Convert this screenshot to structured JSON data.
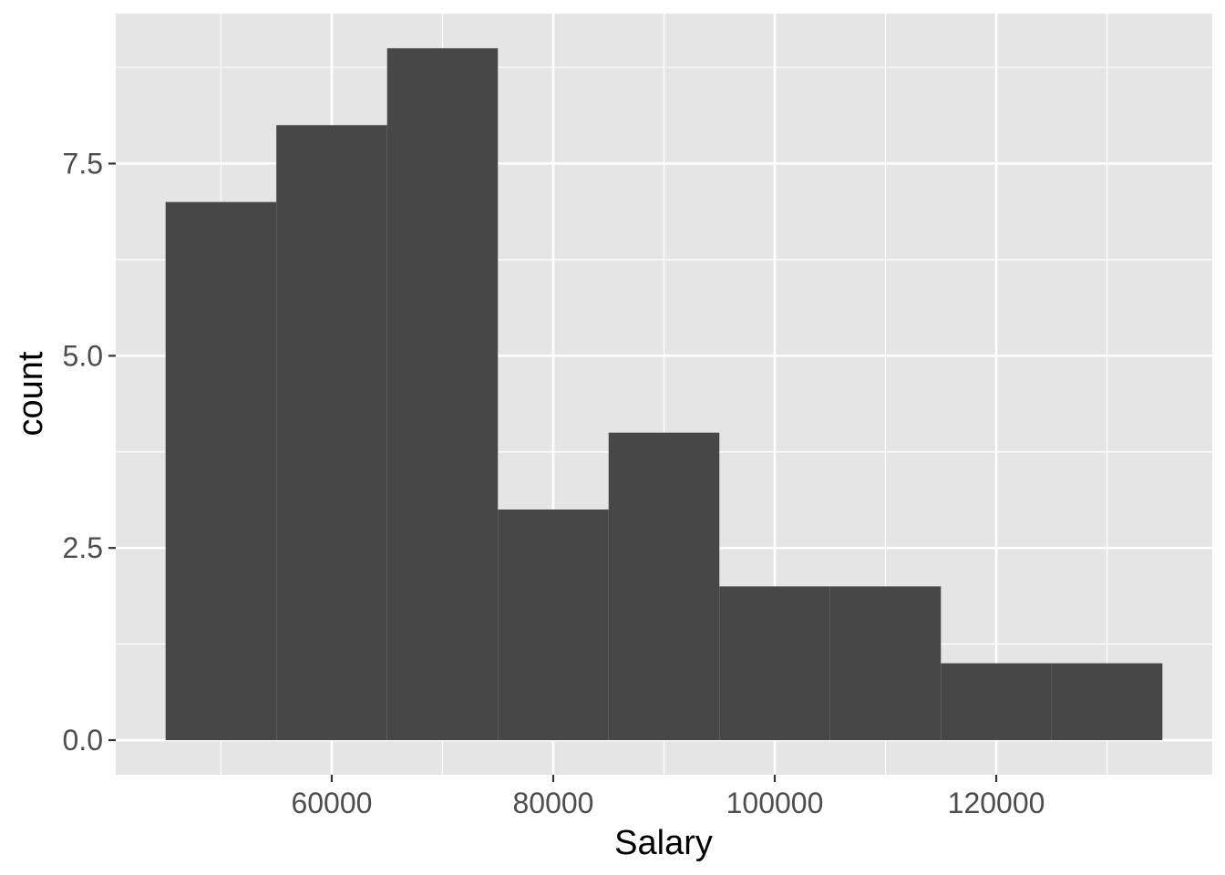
{
  "chart_data": {
    "type": "bar",
    "histogram": true,
    "bins": [
      {
        "x0": 45000,
        "x1": 55000,
        "count": 7
      },
      {
        "x0": 55000,
        "x1": 65000,
        "count": 8
      },
      {
        "x0": 65000,
        "x1": 75000,
        "count": 9
      },
      {
        "x0": 75000,
        "x1": 85000,
        "count": 3
      },
      {
        "x0": 85000,
        "x1": 95000,
        "count": 4
      },
      {
        "x0": 95000,
        "x1": 105000,
        "count": 2
      },
      {
        "x0": 105000,
        "x1": 115000,
        "count": 2
      },
      {
        "x0": 115000,
        "x1": 125000,
        "count": 1
      },
      {
        "x0": 125000,
        "x1": 135000,
        "count": 1
      }
    ],
    "title": "",
    "xlabel": "Salary",
    "ylabel": "count",
    "xlim": [
      40500,
      139500
    ],
    "ylim": [
      -0.45,
      9.45
    ],
    "x_ticks": [
      60000,
      80000,
      100000,
      120000
    ],
    "x_tick_labels": [
      "60000",
      "80000",
      "100000",
      "120000"
    ],
    "x_minor_ticks": [
      50000,
      70000,
      90000,
      110000,
      130000
    ],
    "y_ticks": [
      0,
      2.5,
      5,
      7.5
    ],
    "y_tick_labels": [
      "0.0",
      "2.5",
      "5.0",
      "7.5"
    ],
    "y_minor_ticks": [
      1.25,
      3.75,
      6.25,
      8.75
    ],
    "grid": true,
    "legend": "none",
    "colors": {
      "bar": "#474747",
      "panel": "#e5e5e5",
      "grid": "#ffffff",
      "tick": "#333333"
    }
  }
}
